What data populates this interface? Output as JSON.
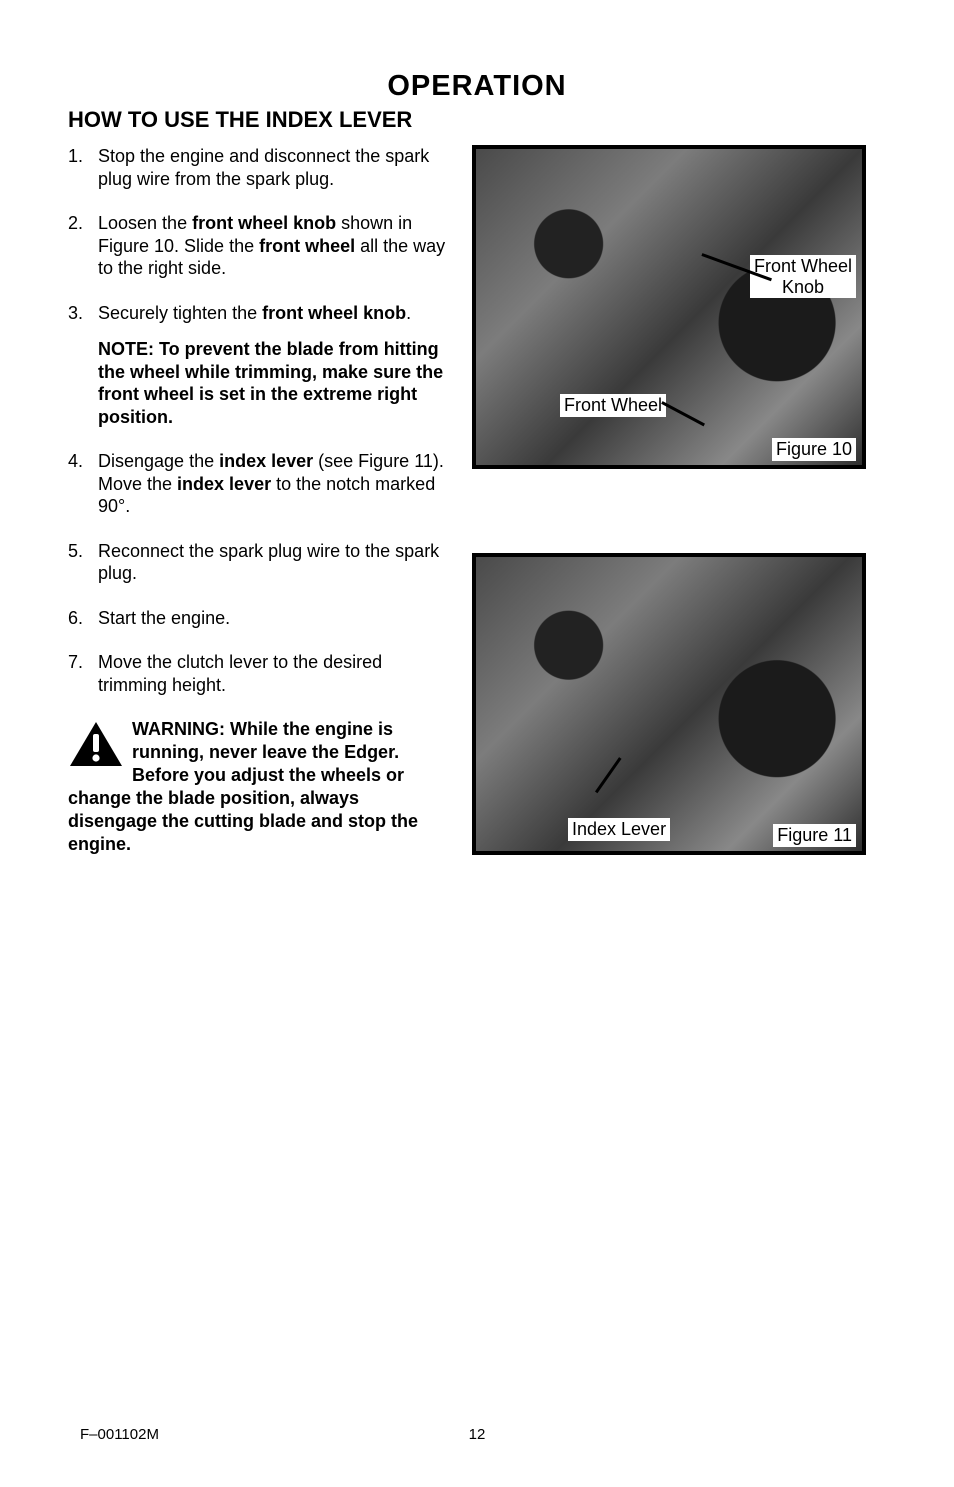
{
  "page_title_fontsize": 29,
  "section_title_fontsize": 22,
  "body_fontsize": 18,
  "footer_fontsize": 15,
  "text_color": "#000000",
  "background_color": "#ffffff",
  "page_title": "OPERATION",
  "section_title": "HOW TO USE THE INDEX LEVER",
  "steps": {
    "s1": "Stop the engine and disconnect the spark plug wire from the spark plug.",
    "s2_a": "Loosen the ",
    "s2_b": "front wheel knob",
    "s2_c": " shown in Figure 10. Slide the ",
    "s2_d": "front wheel",
    "s2_e": " all the way to the right side.",
    "s3_a": "Securely tighten the ",
    "s3_b": "front wheel knob",
    "s3_c": ".",
    "note": "NOTE: To prevent the blade from hitting the wheel while trimming, make sure the front wheel is set in the extreme right position.",
    "s4_a": "Disengage the ",
    "s4_b": "index lever",
    "s4_c": " (see Figure 11). Move the ",
    "s4_d": "index lever",
    "s4_e": " to the notch marked 90°.",
    "s5": "Reconnect the spark plug wire to the spark plug.",
    "s6": "Start the engine.",
    "s7": "Move the clutch lever to the desired trimming height."
  },
  "warning": {
    "lead": "WARNING:  While the engine is running, never leave the Edger. Before you adjust the wheels or change the blade position, always disengage the cutting blade and stop the engine."
  },
  "figure10": {
    "label_knob": "Front Wheel\nKnob",
    "label_wheel": "Front Wheel",
    "caption": "Figure 10",
    "border_color": "#000000",
    "border_width": 4
  },
  "figure11": {
    "label_lever": "Index Lever",
    "caption": "Figure 11",
    "border_color": "#000000",
    "border_width": 4
  },
  "footer_left": "F–001102M",
  "page_number": "12"
}
